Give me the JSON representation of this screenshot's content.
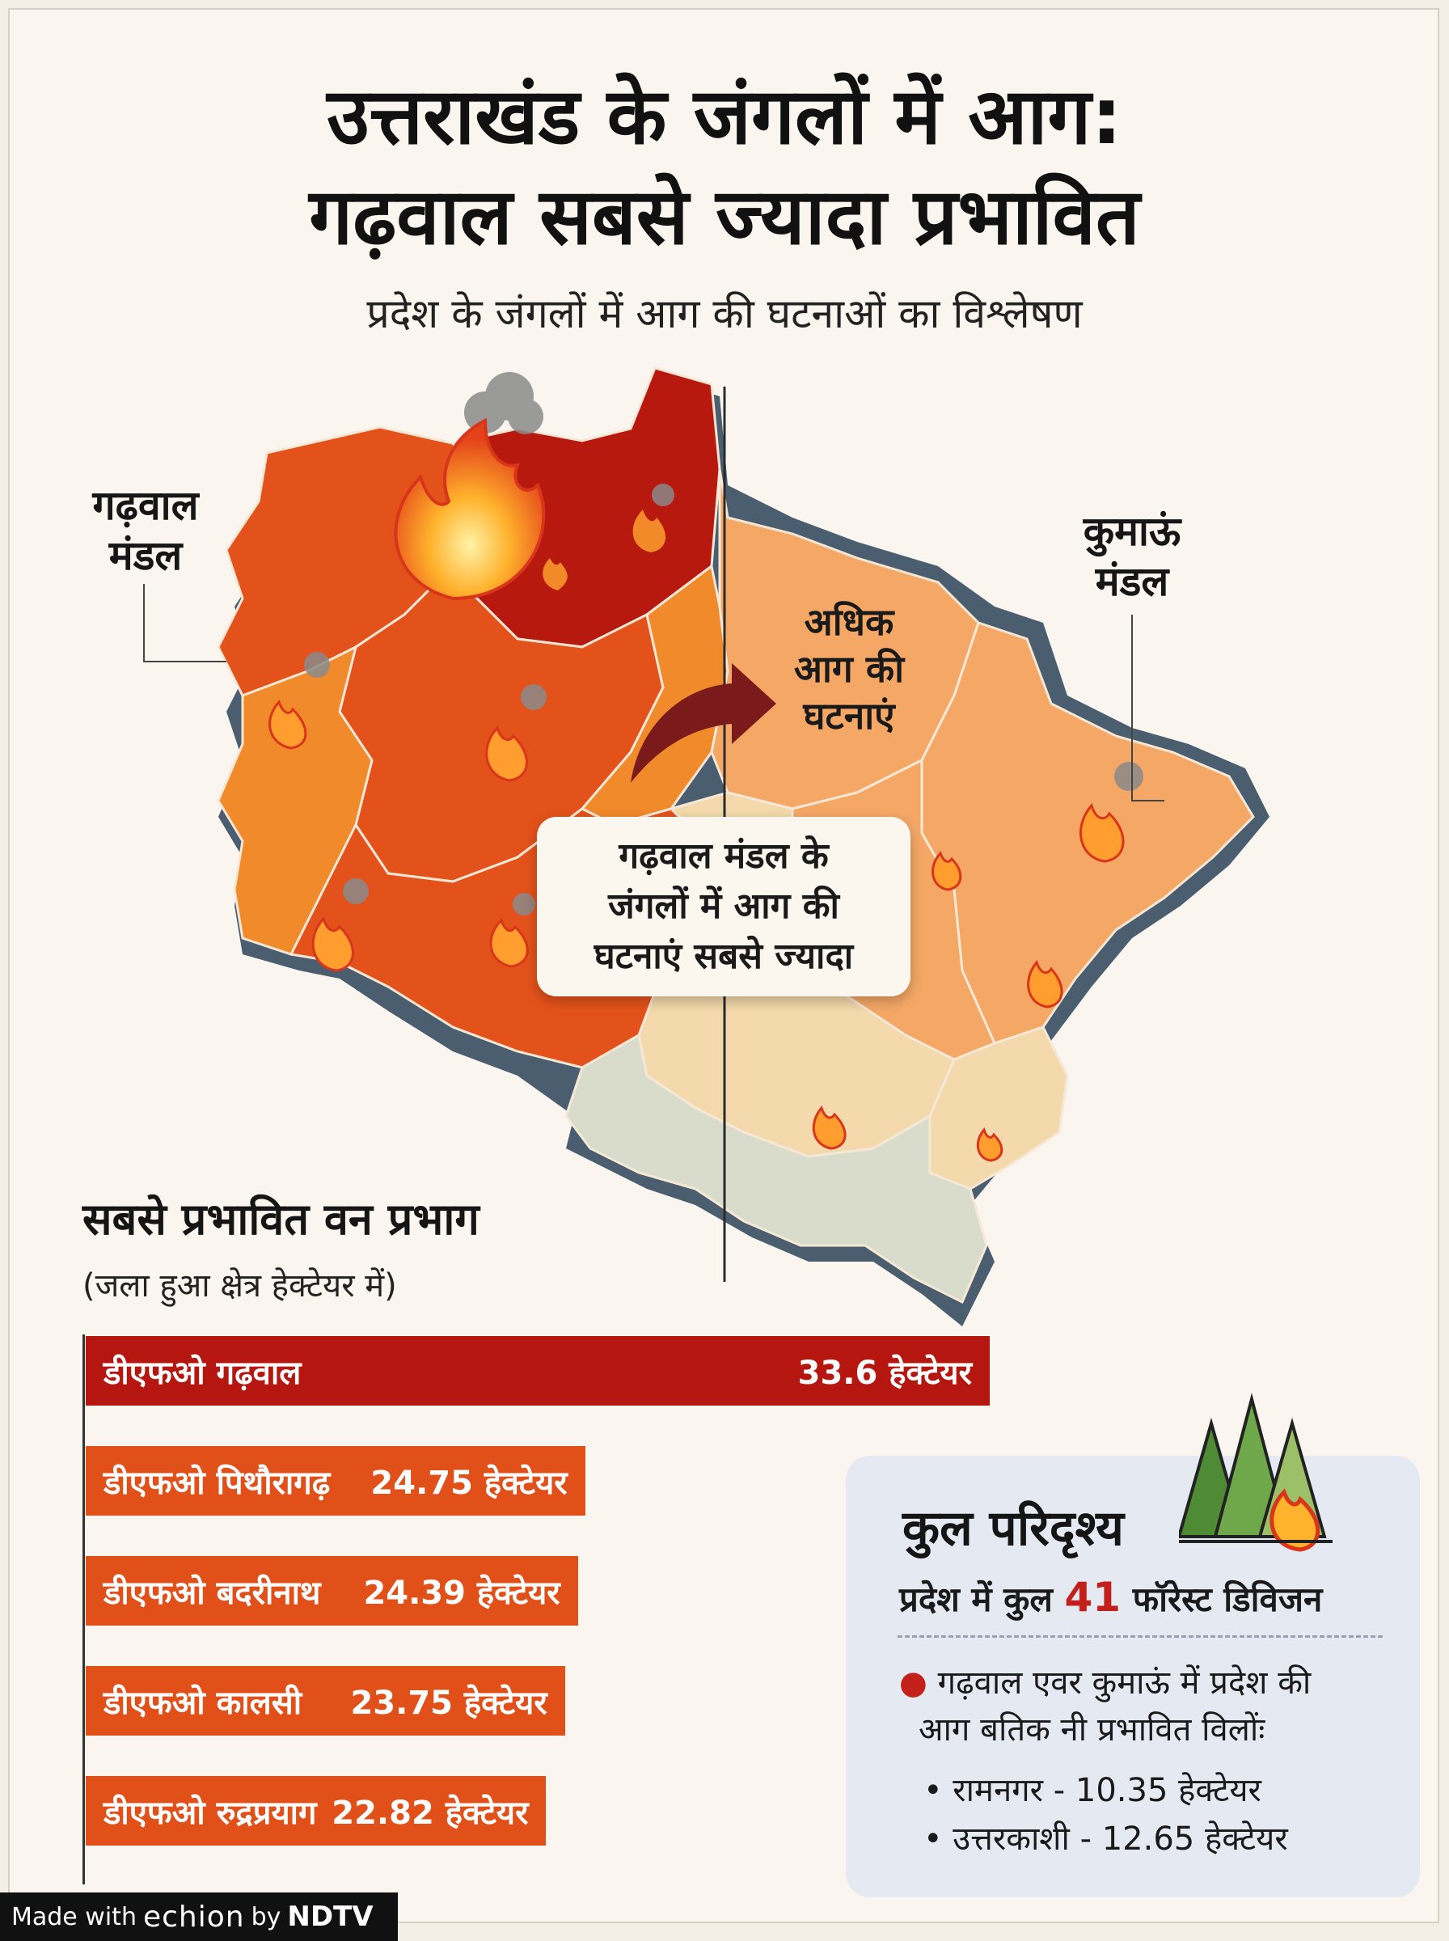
{
  "header": {
    "title_line1": "उत्तराखंड के जंगलों में आग:",
    "title_line2": "गढ़वाल सबसे ज्यादा प्रभावित",
    "subtitle": "प्रदेश के जंगलों में आग की घटनाओं का विश्लेषण"
  },
  "map": {
    "garhwal_label_line1": "गढ़वाल",
    "garhwal_label_line2": "मंडल",
    "kumaon_label_line1": "कुमाऊं",
    "kumaon_label_line2": "मंडल",
    "arrow_label_line1": "अधिक",
    "arrow_label_line2": "आग की",
    "arrow_label_line3": "घटनाएं",
    "callout_line1": "गढ़वाल मंडल के",
    "callout_line2": "जंगलों में आग की",
    "callout_line3": "घटनाएं सबसे ज्यादा",
    "colors": {
      "highest": "#b8190f",
      "high": "#e4521b",
      "medium": "#f08a2a",
      "low": "#f5a866",
      "lowest": "#f3d9ab",
      "plain": "#d9dccb"
    }
  },
  "chart_data": {
    "type": "bar",
    "orientation": "horizontal",
    "title": "सबसे प्रभावित वन प्रभाग",
    "subtitle": "(जला हुआ क्षेत्र हेक्टेयर में)",
    "categories": [
      "डीएफओ गढ़वाल",
      "डीएफओ पिथौरागढ़",
      "डीएफओ बदरीनाथ",
      "डीएफओ कालसी",
      "डीएफओ रुद्रप्रयाग"
    ],
    "values": [
      33.6,
      24.75,
      24.39,
      23.75,
      22.82
    ],
    "value_labels": [
      "33.6 हेक्टेयर",
      "24.75 हेक्टेयर",
      "24.39 हेक्टेयर",
      "23.75 हेक्टेयर",
      "22.82 हेक्टेयर"
    ],
    "bar_colors": [
      "#b5160f",
      "#e2501a",
      "#e2501a",
      "#e2501a",
      "#e2501a"
    ],
    "xlim": [
      0,
      33.6
    ],
    "grid": false
  },
  "summary": {
    "heading": "कुल परिदृश्य",
    "stat_prefix": "प्रदेश में कुल",
    "stat_number": "41",
    "stat_suffix": "फॉरेस्ट डिविजन",
    "note_line1": "गढ़वाल एवर कुमाऊं में प्रदेश की",
    "note_line2": "आग बतिक नी प्रभावित विलोंः",
    "items": [
      "• रामनगर - 10.35 हेक्टेयर",
      "• उत्तरकाशी - 12.65 हेक्टेयर"
    ],
    "icon": "forest-fire-icon"
  },
  "footer": {
    "made_with": "Made with",
    "brand": "echion",
    "by": "by",
    "ndtv": "NDTV"
  }
}
